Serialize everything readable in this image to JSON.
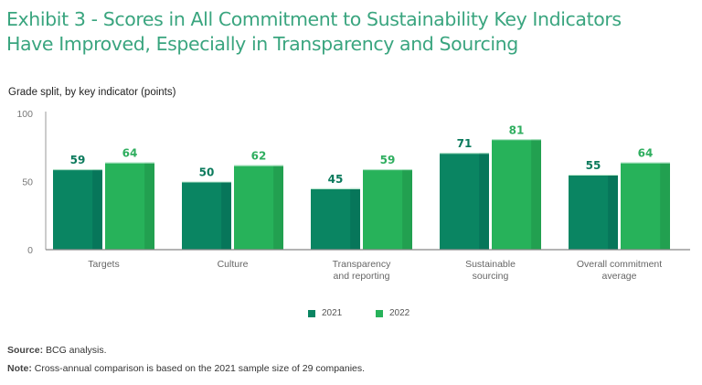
{
  "title_lines": [
    "Exhibit 3 - Scores in All Commitment to Sustainability Key Indicators",
    "Have Improved, Especially in Transparency and Sourcing"
  ],
  "subtitle": "Grade split, by key indicator (points)",
  "colors": {
    "title": "#3aa57f",
    "s2021": "#0a8562",
    "s2021_shade": "#07765a",
    "s2022": "#27b25a",
    "s2022_shade": "#22a050"
  },
  "chart_data": {
    "type": "bar",
    "title": "Exhibit 3 - Scores in All Commitment to Sustainability Key Indicators Have Improved, Especially in Transparency and Sourcing",
    "subtitle": "Grade split, by key indicator (points)",
    "categories": [
      [
        "Targets"
      ],
      [
        "Culture"
      ],
      [
        "Transparency",
        "and reporting"
      ],
      [
        "Sustainable",
        "sourcing"
      ],
      [
        "Overall commitment",
        "average"
      ]
    ],
    "series": [
      {
        "name": "2021",
        "values": [
          59,
          50,
          45,
          71,
          55
        ]
      },
      {
        "name": "2022",
        "values": [
          64,
          62,
          59,
          81,
          64
        ]
      }
    ],
    "xlabel": "",
    "ylabel": "",
    "ylim": [
      0,
      100
    ],
    "yticks": [
      0,
      50,
      100
    ],
    "grid": false,
    "legend": "bottom-center"
  },
  "legend": [
    {
      "label": "2021"
    },
    {
      "label": "2022"
    }
  ],
  "footer": {
    "source_label": "Source:",
    "source_text": " BCG analysis.",
    "note_label": "Note:",
    "note_text": " Cross-annual comparison is based on the 2021 sample size of 29 companies."
  }
}
